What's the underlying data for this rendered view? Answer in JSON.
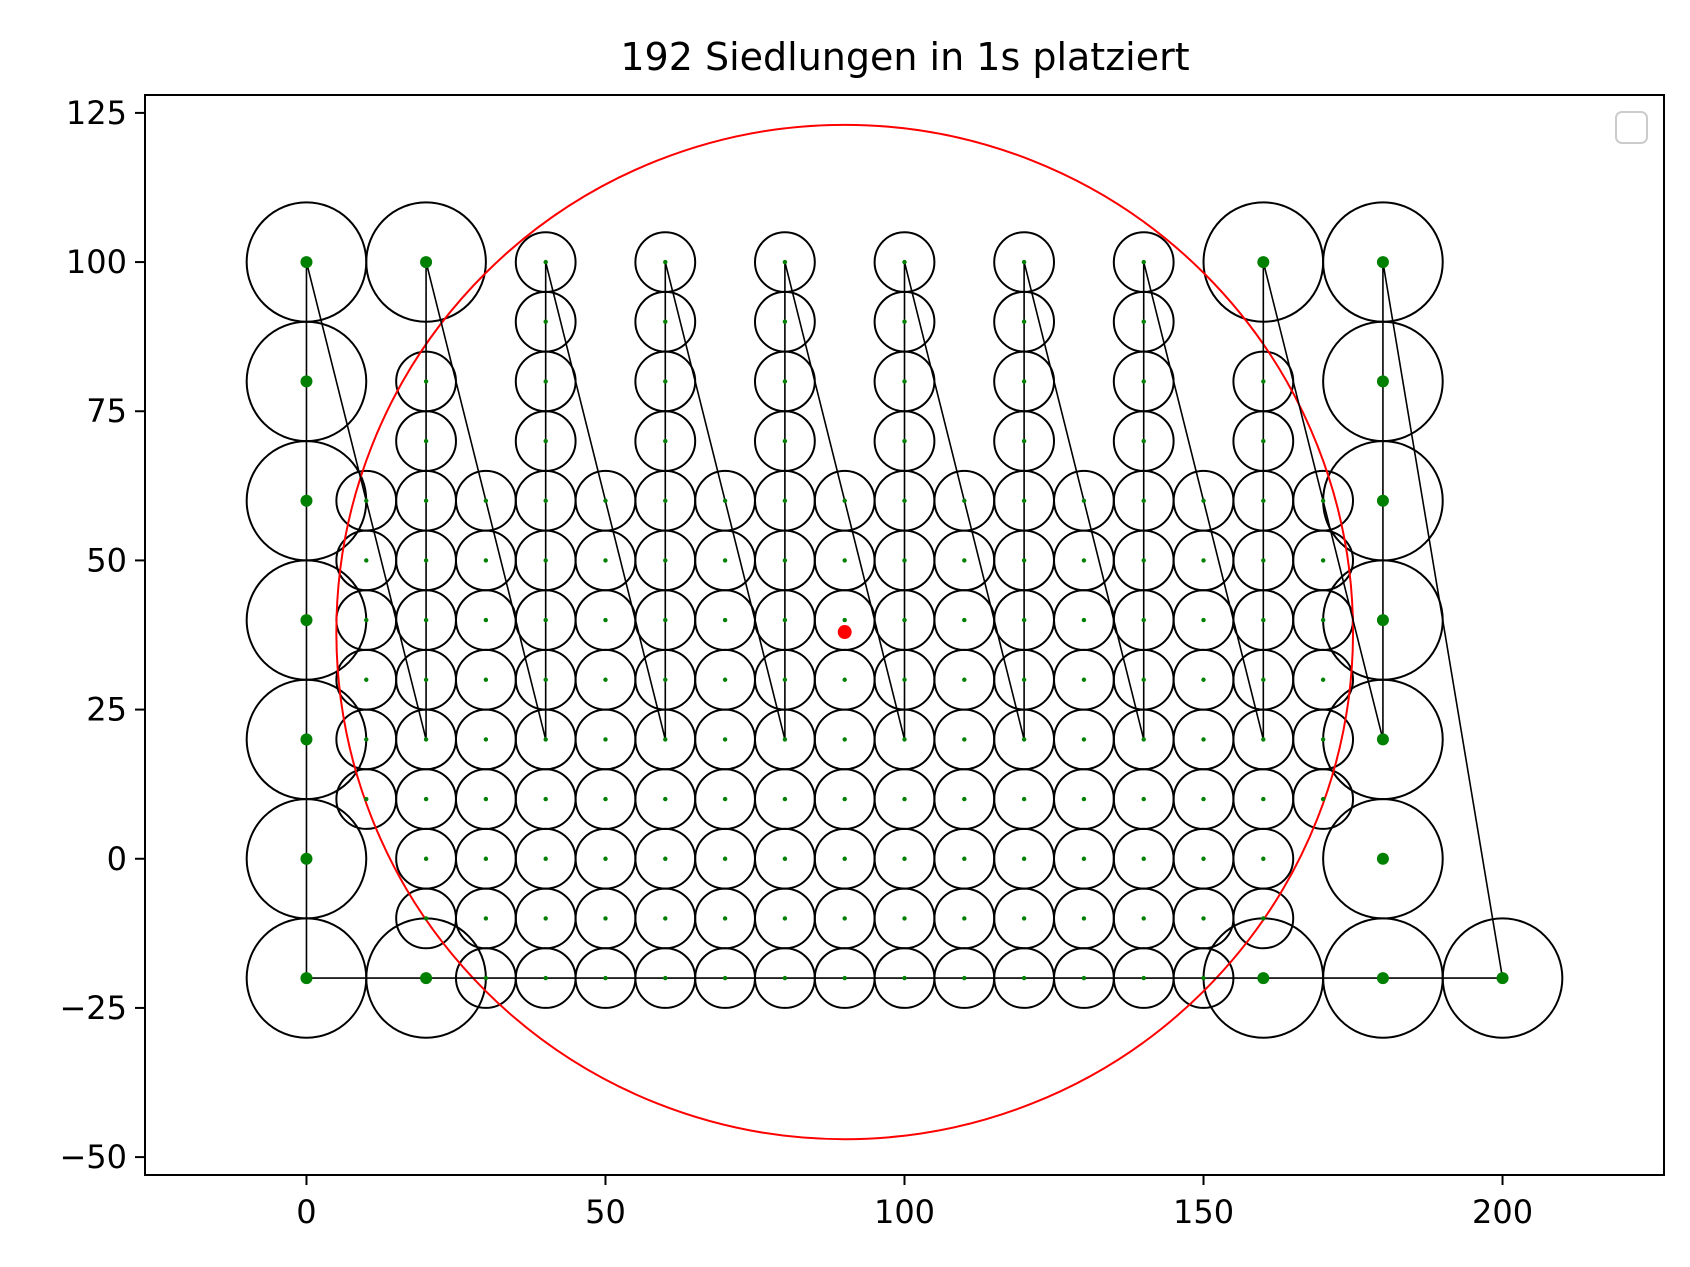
{
  "chart_data": {
    "type": "scatter",
    "title": "192 Siedlungen in 1s platziert",
    "xlabel": "",
    "ylabel": "",
    "xlim": [
      -27,
      227
    ],
    "ylim": [
      -53,
      128
    ],
    "xticks": [
      0,
      50,
      100,
      150,
      200
    ],
    "yticks": [
      125,
      100,
      75,
      50,
      25,
      0,
      -25,
      -50
    ],
    "xtick_labels": [
      "0",
      "50",
      "100",
      "150",
      "200"
    ],
    "ytick_labels": [
      "125",
      "100",
      "75",
      "50",
      "25",
      "0",
      "−25",
      "−50"
    ],
    "legend": {
      "placement": "top-right",
      "entries": []
    },
    "grid": false,
    "colors": {
      "points": "#008000",
      "center": "#ff0000",
      "bounding_circle": "#ff0000",
      "circles": "#000000",
      "path": "#000000"
    },
    "large_settlements": [
      [
        0,
        100
      ],
      [
        20,
        100
      ],
      [
        160,
        100
      ],
      [
        180,
        100
      ],
      [
        0,
        80
      ],
      [
        180,
        80
      ],
      [
        0,
        60
      ],
      [
        180,
        60
      ],
      [
        0,
        40
      ],
      [
        180,
        40
      ],
      [
        0,
        20
      ],
      [
        180,
        20
      ],
      [
        0,
        0
      ],
      [
        180,
        0
      ],
      [
        0,
        -20
      ],
      [
        20,
        -20
      ],
      [
        160,
        -20
      ],
      [
        180,
        -20
      ],
      [
        200,
        -20
      ]
    ],
    "large_radius": 10,
    "small_settlements": {
      "radius": 5,
      "rows": [
        {
          "y": 100,
          "x": [
            40,
            60,
            80,
            100,
            120,
            140
          ]
        },
        {
          "y": 90,
          "x": [
            40,
            60,
            80,
            100,
            120,
            140
          ]
        },
        {
          "y": 80,
          "x": [
            20,
            40,
            60,
            80,
            100,
            120,
            140,
            160
          ]
        },
        {
          "y": 70,
          "x": [
            20,
            40,
            60,
            80,
            100,
            120,
            140,
            160
          ]
        },
        {
          "y": 60,
          "x": [
            10,
            20,
            30,
            40,
            50,
            60,
            70,
            80,
            90,
            100,
            110,
            120,
            130,
            140,
            150,
            160,
            170
          ]
        },
        {
          "y": 50,
          "x": [
            10,
            20,
            30,
            40,
            50,
            60,
            70,
            80,
            90,
            100,
            110,
            120,
            130,
            140,
            150,
            160,
            170
          ]
        },
        {
          "y": 40,
          "x": [
            10,
            20,
            30,
            40,
            50,
            60,
            70,
            80,
            90,
            100,
            110,
            120,
            130,
            140,
            150,
            160,
            170
          ]
        },
        {
          "y": 30,
          "x": [
            10,
            20,
            30,
            40,
            50,
            60,
            70,
            80,
            90,
            100,
            110,
            120,
            130,
            140,
            150,
            160,
            170
          ]
        },
        {
          "y": 20,
          "x": [
            10,
            20,
            30,
            40,
            50,
            60,
            70,
            80,
            90,
            100,
            110,
            120,
            130,
            140,
            150,
            160,
            170
          ]
        },
        {
          "y": 10,
          "x": [
            10,
            20,
            30,
            40,
            50,
            60,
            70,
            80,
            90,
            100,
            110,
            120,
            130,
            140,
            150,
            160,
            170
          ]
        },
        {
          "y": 0,
          "x": [
            20,
            30,
            40,
            50,
            60,
            70,
            80,
            90,
            100,
            110,
            120,
            130,
            140,
            150,
            160
          ]
        },
        {
          "y": -10,
          "x": [
            20,
            30,
            40,
            50,
            60,
            70,
            80,
            90,
            100,
            110,
            120,
            130,
            140,
            150,
            160
          ]
        },
        {
          "y": -20,
          "x": [
            30,
            40,
            50,
            60,
            70,
            80,
            90,
            100,
            110,
            120,
            130,
            140,
            150
          ]
        }
      ]
    },
    "path": [
      [
        0,
        -20
      ],
      [
        0,
        100
      ],
      [
        20,
        20
      ],
      [
        20,
        100
      ],
      [
        40,
        20
      ],
      [
        40,
        100
      ],
      [
        60,
        20
      ],
      [
        60,
        100
      ],
      [
        80,
        20
      ],
      [
        80,
        100
      ],
      [
        100,
        20
      ],
      [
        100,
        100
      ],
      [
        120,
        20
      ],
      [
        120,
        100
      ],
      [
        140,
        20
      ],
      [
        140,
        100
      ],
      [
        160,
        20
      ],
      [
        160,
        100
      ],
      [
        180,
        20
      ],
      [
        180,
        100
      ],
      [
        200,
        -20
      ],
      [
        0,
        -20
      ]
    ],
    "center": [
      90,
      38
    ],
    "bounding_circle": {
      "cx": 90,
      "cy": 38,
      "r": 85
    }
  }
}
